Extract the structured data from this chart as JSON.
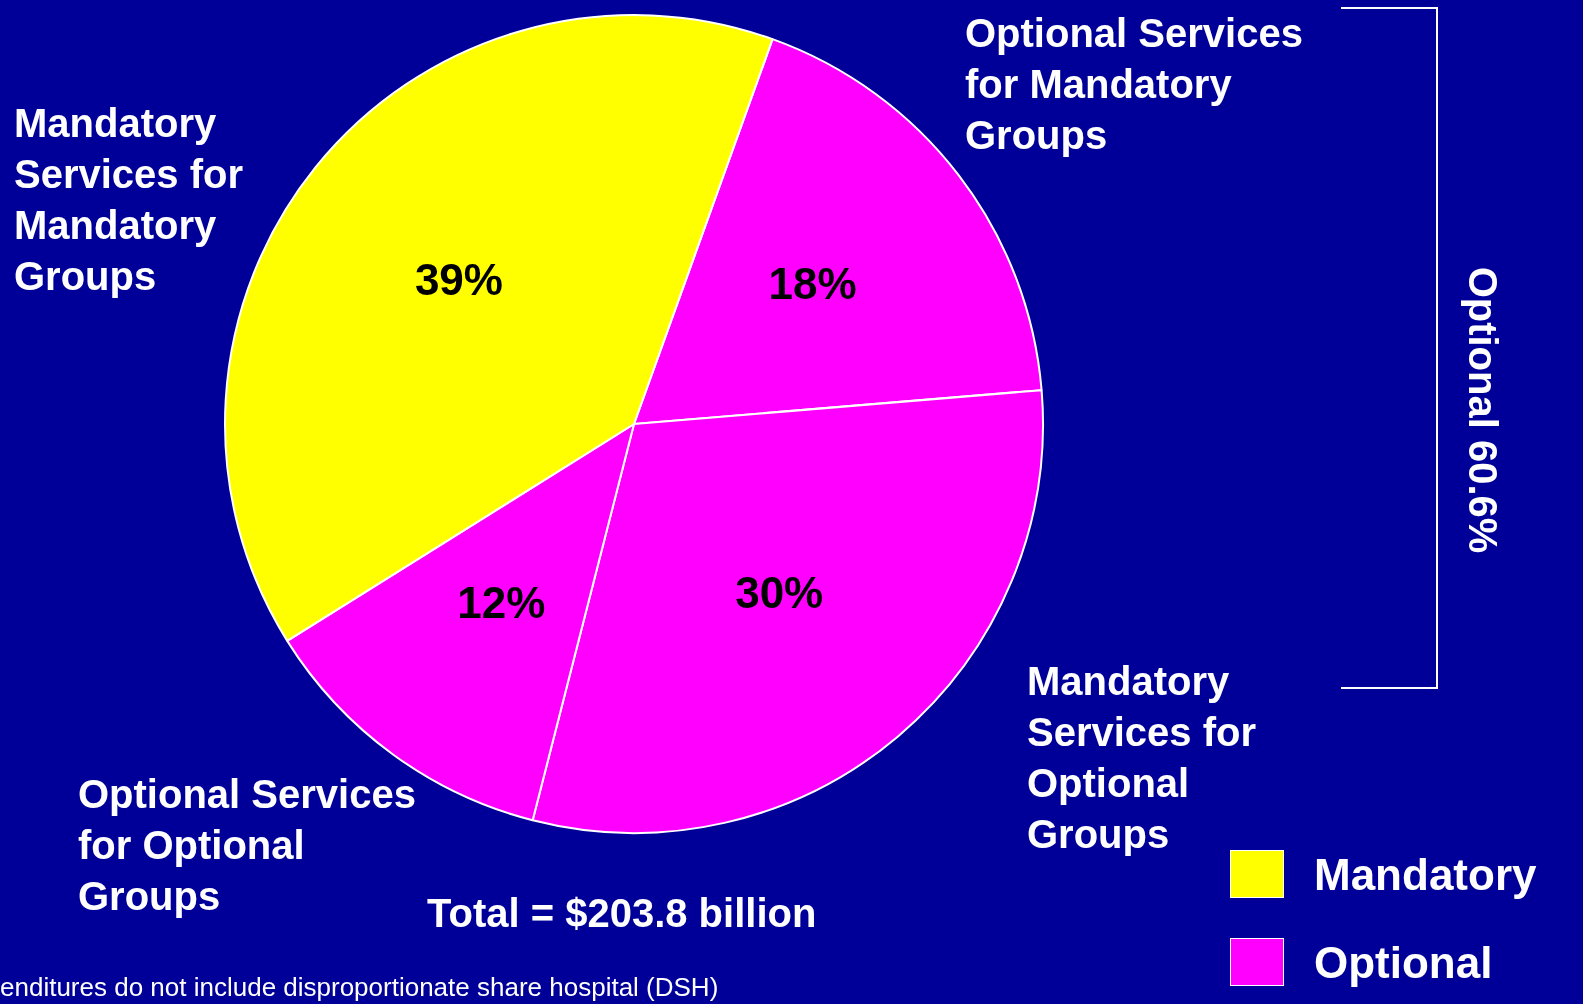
{
  "chart_data": {
    "type": "pie",
    "categories": [
      "Optional Services for Mandatory Groups",
      "Mandatory Services for Optional Groups",
      "Optional Services for Optional Groups",
      "Mandatory Services for Mandatory Groups"
    ],
    "values": [
      18,
      30,
      12,
      39
    ],
    "colors": [
      "#ff00ff",
      "#ff00ff",
      "#ff00ff",
      "#ffff00"
    ],
    "value_labels": [
      "18%",
      "30%",
      "12%",
      "39%"
    ],
    "legend": "bottom right",
    "annotations": [
      "Optional 60.6%",
      "Total = $203.8 billion",
      "enditures do not include disproportionate share hospital (DSH)",
      "Mandatory",
      "Optional"
    ]
  }
}
